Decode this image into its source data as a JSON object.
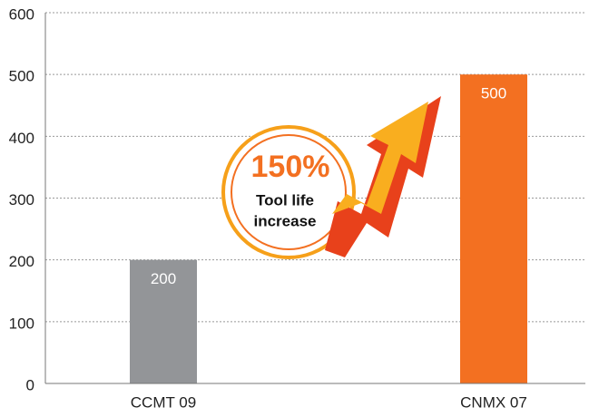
{
  "chart_data": {
    "type": "bar",
    "categories": [
      "CCMT 09",
      "CNMX 07"
    ],
    "values": [
      200,
      500
    ],
    "colors": [
      "#939598",
      "#f37021"
    ],
    "ylim": [
      0,
      600
    ],
    "yticks": [
      0,
      100,
      200,
      300,
      400,
      500,
      600
    ],
    "grid": true,
    "annotation": {
      "headline": "150%",
      "text": [
        "Tool life",
        "increase"
      ]
    }
  }
}
